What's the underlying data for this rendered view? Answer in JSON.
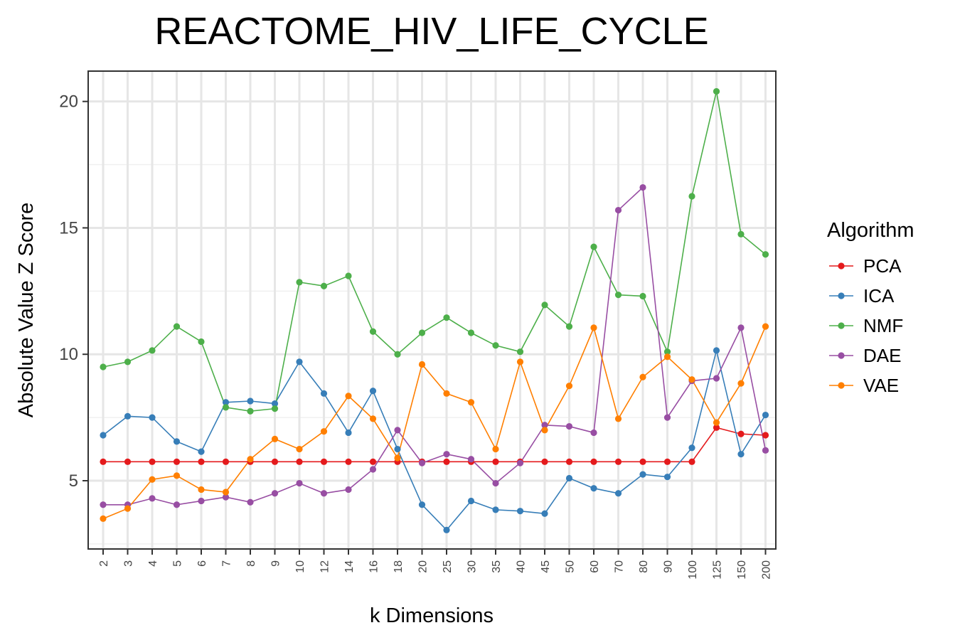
{
  "chart_data": {
    "type": "line",
    "title": "REACTOME_HIV_LIFE_CYCLE",
    "xlabel": "k Dimensions",
    "ylabel": "Absolute Value Z Score",
    "categories": [
      "2",
      "3",
      "4",
      "5",
      "6",
      "7",
      "8",
      "9",
      "10",
      "12",
      "14",
      "16",
      "18",
      "20",
      "25",
      "30",
      "35",
      "40",
      "45",
      "50",
      "60",
      "70",
      "80",
      "90",
      "100",
      "125",
      "150",
      "200"
    ],
    "ylim": [
      2.3,
      21.2
    ],
    "yticks": [
      "5",
      "10",
      "15",
      "20"
    ],
    "grid": true,
    "legend": {
      "title": "Algorithm",
      "position": "right"
    },
    "series": [
      {
        "name": "PCA",
        "color": "#E41A1C",
        "values": [
          5.75,
          5.75,
          5.75,
          5.75,
          5.75,
          5.75,
          5.75,
          5.75,
          5.75,
          5.75,
          5.75,
          5.75,
          5.75,
          5.75,
          5.75,
          5.75,
          5.75,
          5.75,
          5.75,
          5.75,
          5.75,
          5.75,
          5.75,
          5.75,
          5.75,
          7.1,
          6.85,
          6.8
        ]
      },
      {
        "name": "ICA",
        "color": "#377EB8",
        "values": [
          6.8,
          7.55,
          7.5,
          6.55,
          6.15,
          8.1,
          8.15,
          8.05,
          9.7,
          8.45,
          6.9,
          8.55,
          6.25,
          4.05,
          3.05,
          4.2,
          3.85,
          3.8,
          3.7,
          5.1,
          4.7,
          4.5,
          5.25,
          5.15,
          6.3,
          10.15,
          6.05,
          7.6
        ]
      },
      {
        "name": "NMF",
        "color": "#4DAF4A",
        "values": [
          9.5,
          9.7,
          10.15,
          11.1,
          10.5,
          7.9,
          7.75,
          7.85,
          12.85,
          12.7,
          13.1,
          10.9,
          10.0,
          10.85,
          11.45,
          10.85,
          10.35,
          10.1,
          11.95,
          11.1,
          14.25,
          12.35,
          12.3,
          10.1,
          16.25,
          20.4,
          14.75,
          13.95
        ]
      },
      {
        "name": "DAE",
        "color": "#984EA3",
        "values": [
          4.05,
          4.05,
          4.3,
          4.05,
          4.2,
          4.35,
          4.15,
          4.5,
          4.9,
          4.5,
          4.65,
          5.45,
          7.0,
          5.7,
          6.05,
          5.85,
          4.9,
          5.7,
          7.2,
          7.15,
          6.9,
          15.7,
          16.6,
          7.5,
          8.95,
          9.05,
          11.05,
          6.2
        ]
      },
      {
        "name": "VAE",
        "color": "#FF7F00",
        "values": [
          3.5,
          3.9,
          5.05,
          5.2,
          4.65,
          4.55,
          5.85,
          6.65,
          6.25,
          6.95,
          8.35,
          7.45,
          5.9,
          9.6,
          8.45,
          8.1,
          6.25,
          9.7,
          7.0,
          8.75,
          11.05,
          7.45,
          9.1,
          9.9,
          9.0,
          7.3,
          8.85,
          11.1
        ]
      }
    ]
  }
}
